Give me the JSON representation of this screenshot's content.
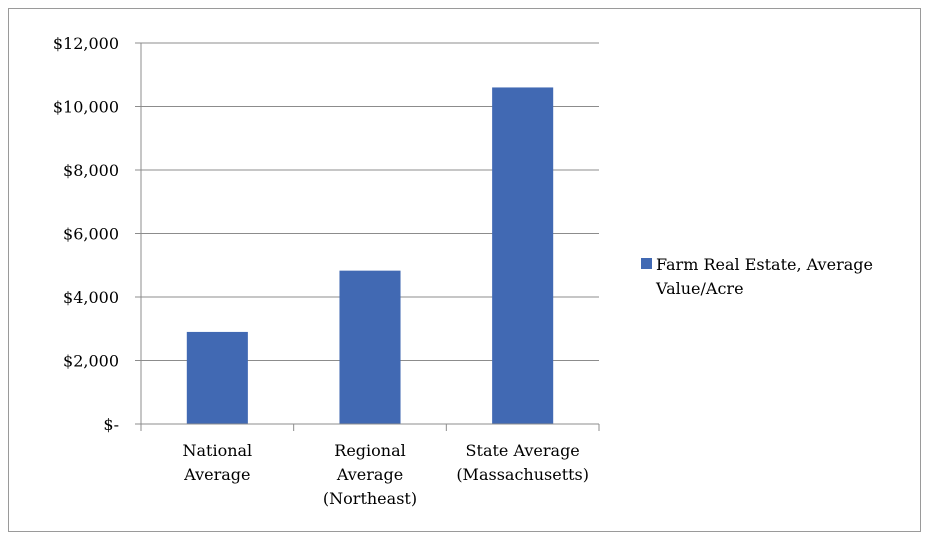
{
  "chart_data": {
    "type": "bar",
    "categories": [
      [
        "National",
        "Average"
      ],
      [
        "Regional",
        "Average",
        "(Northeast)"
      ],
      [
        "State Average",
        "(Massachusetts)"
      ]
    ],
    "series": [
      {
        "name": "Farm Real Estate, Average Value/Acre",
        "name_lines": [
          "Farm Real Estate, Average",
          "Value/Acre"
        ],
        "values": [
          2900,
          4830,
          10600
        ],
        "color": "#4169b3"
      }
    ],
    "y_ticks": [
      "$-",
      "$2,000",
      "$4,000",
      "$6,000",
      "$8,000",
      "$10,000",
      "$12,000"
    ],
    "ylim": [
      0,
      12000
    ],
    "y_step": 2000,
    "grid": true,
    "legend": "right",
    "title": "",
    "xlabel": "",
    "ylabel": ""
  }
}
